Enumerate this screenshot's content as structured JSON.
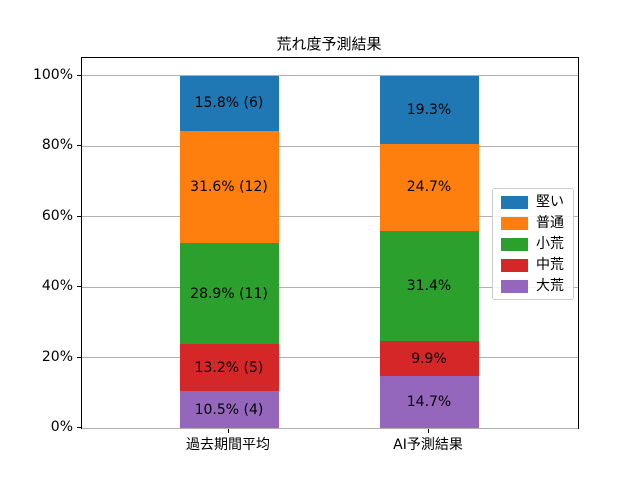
{
  "figure": {
    "background": "#ffffff",
    "text_color": "#000000",
    "grid_color": "#b0b0b0",
    "spine_color": "#000000"
  },
  "chart_data": {
    "type": "bar",
    "stacked": true,
    "title": "荒れ度予測結果",
    "xlabel": "",
    "ylabel": "",
    "categories": [
      "過去期間平均",
      "AI予測結果"
    ],
    "series": [
      {
        "name": "堅い",
        "color": "#1f77b4",
        "values": [
          15.8,
          19.3
        ],
        "labels": [
          "15.8% (6)",
          "19.3%"
        ]
      },
      {
        "name": "普通",
        "color": "#ff7f0e",
        "values": [
          31.6,
          24.7
        ],
        "labels": [
          "31.6% (12)",
          "24.7%"
        ]
      },
      {
        "name": "小荒",
        "color": "#2ca02c",
        "values": [
          28.9,
          31.4
        ],
        "labels": [
          "28.9% (11)",
          "31.4%"
        ]
      },
      {
        "name": "中荒",
        "color": "#d62728",
        "values": [
          13.2,
          9.9
        ],
        "labels": [
          "13.2% (5)",
          "9.9%"
        ]
      },
      {
        "name": "大荒",
        "color": "#9467bd",
        "values": [
          10.5,
          14.7
        ],
        "labels": [
          "10.5% (4)",
          "14.7%"
        ]
      }
    ],
    "stack_order_bottom_to_top": [
      "大荒",
      "中荒",
      "小荒",
      "普通",
      "堅い"
    ],
    "counts_shown_for": "過去期間平均",
    "counts": {
      "堅い": 6,
      "普通": 12,
      "小荒": 11,
      "中荒": 5,
      "大荒": 4
    },
    "ylim": [
      0,
      105
    ],
    "ytick_values": [
      0,
      20,
      40,
      60,
      80,
      100
    ],
    "ytick_labels": [
      "0%",
      "20%",
      "40%",
      "60%",
      "80%",
      "100%"
    ],
    "grid": true,
    "legend": {
      "position": "center right",
      "entries": [
        "堅い",
        "普通",
        "小荒",
        "中荒",
        "大荒"
      ]
    }
  }
}
